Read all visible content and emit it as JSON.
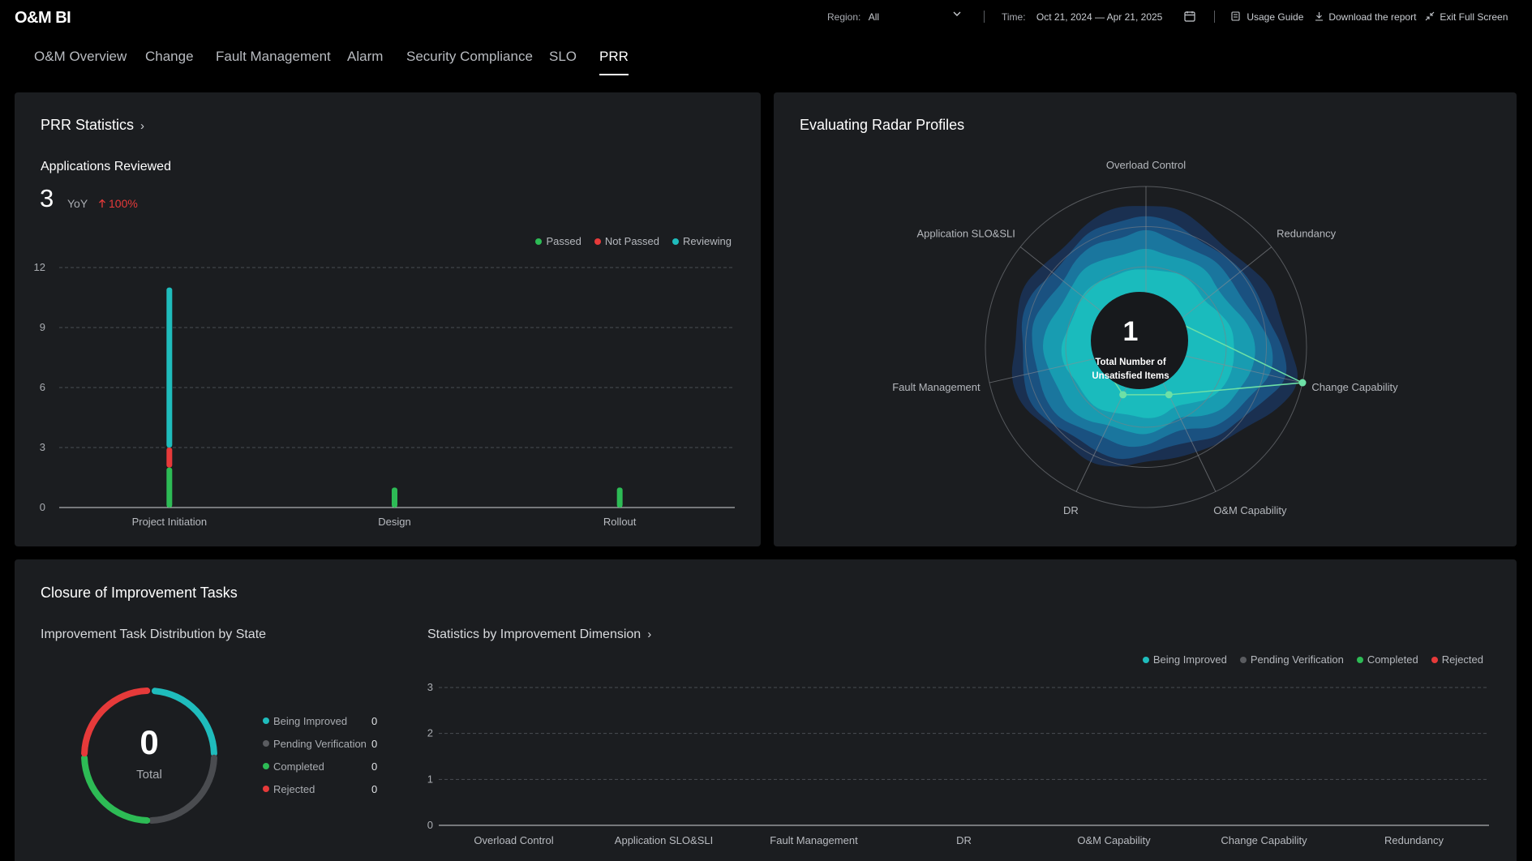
{
  "app": {
    "title": "O&M BI"
  },
  "header": {
    "region_label": "Region:",
    "region_value": "All",
    "time_label": "Time:",
    "time_value": "Oct 21, 2024 — Apr 21, 2025",
    "usage_guide": "Usage Guide",
    "download": "Download the report",
    "exit_full": "Exit Full Screen"
  },
  "tabs": [
    {
      "label": "O&M Overview"
    },
    {
      "label": "Change"
    },
    {
      "label": "Fault Management"
    },
    {
      "label": "Alarm"
    },
    {
      "label": "Security Compliance"
    },
    {
      "label": "SLO"
    },
    {
      "label": "PRR"
    }
  ],
  "active_tab": "PRR",
  "prr": {
    "title": "PRR Statistics",
    "apps_label": "Applications Reviewed",
    "apps_value": "3",
    "yoy_label": "YoY",
    "yoy_value": "100%",
    "legend": [
      {
        "name": "Passed",
        "color": "#2dbb55"
      },
      {
        "name": "Not Passed",
        "color": "#e63a3a"
      },
      {
        "name": "Reviewing",
        "color": "#1fbcbc"
      }
    ]
  },
  "radar": {
    "title": "Evaluating Radar Profiles",
    "center_value": "1",
    "center_label_1": "Total Number of",
    "center_label_2": "Unsatisfied Items",
    "axes": [
      "Overload Control",
      "Redundancy",
      "Change Capability",
      "O&M Capability",
      "DR",
      "Fault Management",
      "Application SLO&SLI"
    ]
  },
  "closure": {
    "title": "Closure of Improvement Tasks",
    "dist_title": "Improvement Task Distribution by State",
    "total_value": "0",
    "total_label": "Total",
    "states": [
      {
        "name": "Being Improved",
        "value": "0",
        "color": "#1fbcbc"
      },
      {
        "name": "Pending Verification",
        "value": "0",
        "color": "#5a5c60"
      },
      {
        "name": "Completed",
        "value": "0",
        "color": "#2dbb55"
      },
      {
        "name": "Rejected",
        "value": "0",
        "color": "#e63a3a"
      }
    ],
    "dim_title": "Statistics by Improvement Dimension"
  },
  "chart_data": [
    {
      "type": "bar",
      "categories": [
        "Project Initiation",
        "Design",
        "Rollout"
      ],
      "series": [
        {
          "name": "Passed",
          "values": [
            2,
            1,
            1
          ]
        },
        {
          "name": "Not Passed",
          "values": [
            1,
            0,
            0
          ]
        },
        {
          "name": "Reviewing",
          "values": [
            8,
            0,
            0
          ]
        }
      ],
      "stacked": true,
      "ylim": [
        0,
        12
      ],
      "yticks": [
        0,
        3,
        6,
        9,
        12
      ],
      "grid": true,
      "legend": "top-right"
    },
    {
      "type": "radar",
      "axes": [
        "Overload Control",
        "Redundancy",
        "Change Capability",
        "O&M Capability",
        "DR",
        "Fault Management",
        "Application SLO&SLI"
      ],
      "values": [
        0.25,
        0.25,
        1,
        0.33,
        0.33,
        0.3,
        0.3
      ],
      "range": [
        0,
        1
      ]
    },
    {
      "type": "bar",
      "categories": [
        "Overload Control",
        "Application SLO&SLI",
        "Fault Management",
        "DR",
        "O&M Capability",
        "Change Capability",
        "Redundancy"
      ],
      "series": [
        {
          "name": "Being Improved",
          "values": [
            0,
            0,
            0,
            0,
            0,
            0,
            0
          ]
        },
        {
          "name": "Pending Verification",
          "values": [
            0,
            0,
            0,
            0,
            0,
            0,
            0
          ]
        },
        {
          "name": "Completed",
          "values": [
            0,
            0,
            0,
            0,
            0,
            0,
            0
          ]
        },
        {
          "name": "Rejected",
          "values": [
            0,
            0,
            0,
            0,
            0,
            0,
            0
          ]
        }
      ],
      "ylim": [
        0,
        3
      ],
      "yticks": [
        0,
        1,
        2,
        3
      ],
      "grid": true,
      "legend": "top-right"
    }
  ]
}
